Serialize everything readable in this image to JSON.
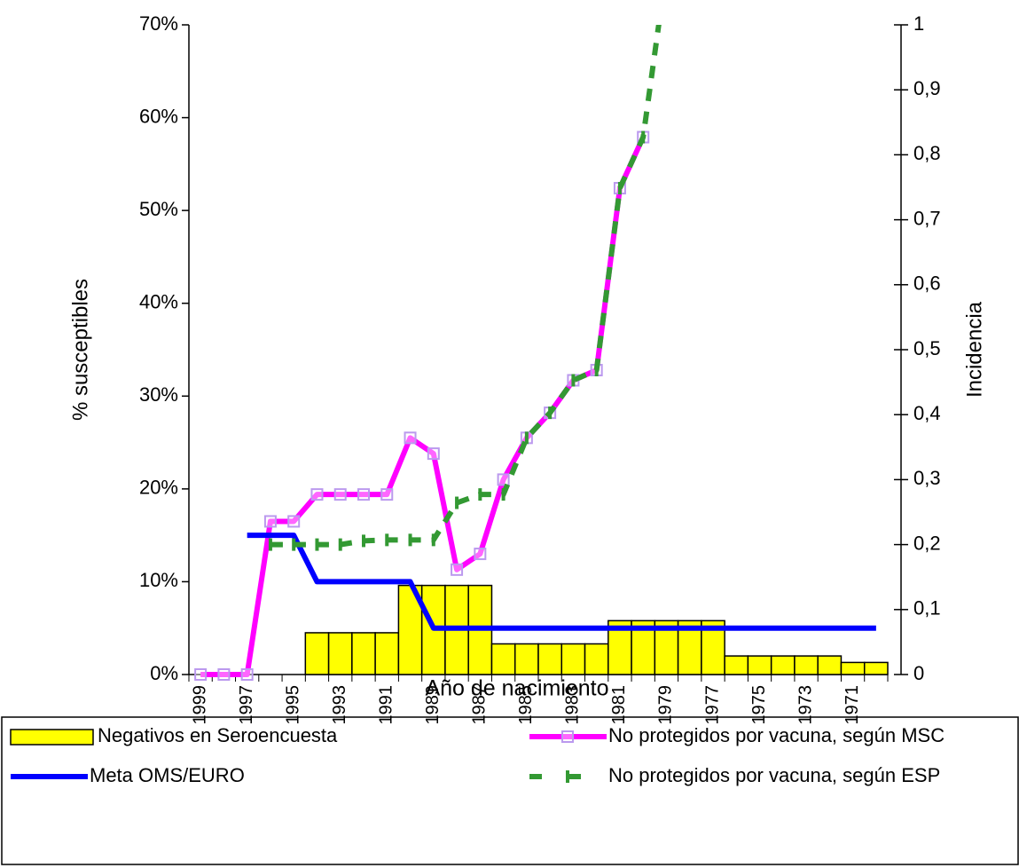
{
  "chart_data": {
    "type": "bar",
    "x_label": "Año de nacimiento",
    "y_label": "% susceptibles",
    "y2_label": "Incidencia",
    "categories": [
      "1999",
      null,
      "1997",
      null,
      "1995",
      null,
      "1993",
      null,
      "1991",
      null,
      "1989",
      null,
      "1987",
      null,
      "1985",
      null,
      "1983",
      null,
      "1981",
      null,
      "1979",
      null,
      "1977",
      null,
      "1975",
      null,
      "1973",
      null,
      "1971",
      null
    ],
    "ylim": [
      0,
      70
    ],
    "yticks": [
      {
        "value": 0,
        "label": "0%"
      },
      {
        "value": 10,
        "label": "10%"
      },
      {
        "value": 20,
        "label": "20%"
      },
      {
        "value": 30,
        "label": "30%"
      },
      {
        "value": 40,
        "label": "40%"
      },
      {
        "value": 50,
        "label": "50%"
      },
      {
        "value": 60,
        "label": "60%"
      },
      {
        "value": 70,
        "label": "70%"
      }
    ],
    "y2lim": [
      0,
      1
    ],
    "y2ticks": [
      0,
      {
        "value": 0.1,
        "label": "0,1"
      },
      {
        "value": 0.2,
        "label": "0,2"
      },
      {
        "value": 0.3,
        "label": "0,3"
      },
      {
        "value": 0.4,
        "label": "0,4"
      },
      {
        "value": 0.5,
        "label": "0,5"
      },
      {
        "value": 0.6,
        "label": "0,6"
      },
      {
        "value": 0.7,
        "label": "0,7"
      },
      {
        "value": 0.8,
        "label": "0,8"
      },
      {
        "value": 0.9,
        "label": "0,9"
      },
      1
    ],
    "legend": "bottom",
    "series": [
      {
        "name": "Negativos en Seroencuesta",
        "type": "bar",
        "color": "#ffff00",
        "values": [
          null,
          null,
          null,
          null,
          null,
          4.5,
          4.5,
          4.5,
          4.5,
          9.6,
          9.6,
          9.6,
          9.6,
          3.3,
          3.3,
          3.3,
          3.3,
          3.3,
          5.8,
          5.8,
          5.8,
          5.8,
          5.8,
          2.0,
          2.0,
          2.0,
          2.0,
          2.0,
          1.3,
          1.3
        ]
      },
      {
        "name": "No protegidos por vacuna, según MSC",
        "type": "line",
        "color": "#ff00ff",
        "marker": "square",
        "values": [
          0,
          0,
          0,
          16.5,
          16.5,
          19.4,
          19.4,
          19.4,
          19.4,
          25.5,
          23.8,
          11.3,
          13,
          21,
          25.5,
          28.2,
          31.7,
          32.8,
          52.4,
          57.9,
          null,
          null,
          null,
          null,
          null,
          null,
          null,
          null,
          null,
          null
        ]
      },
      {
        "name": "Meta OMS/EURO",
        "type": "line",
        "color": "#0000ff",
        "values": [
          null,
          null,
          15,
          15,
          15,
          10,
          10,
          10,
          10,
          10,
          5,
          5,
          5,
          5,
          5,
          5,
          5,
          5,
          5,
          5,
          5,
          5,
          5,
          5,
          5,
          5,
          5,
          5,
          5,
          5
        ]
      },
      {
        "name": "No protegidos por vacuna, según ESP",
        "type": "line",
        "color": "#339933",
        "dashed": true,
        "marker": "tick",
        "values": [
          null,
          null,
          null,
          14,
          14,
          14,
          14,
          14.4,
          14.5,
          14.5,
          14.5,
          18.5,
          19.4,
          19.4,
          25.5,
          28.2,
          31.7,
          32.8,
          52.4,
          57.9,
          76,
          null,
          null,
          null,
          null,
          null,
          null,
          null,
          null,
          null
        ]
      }
    ]
  }
}
